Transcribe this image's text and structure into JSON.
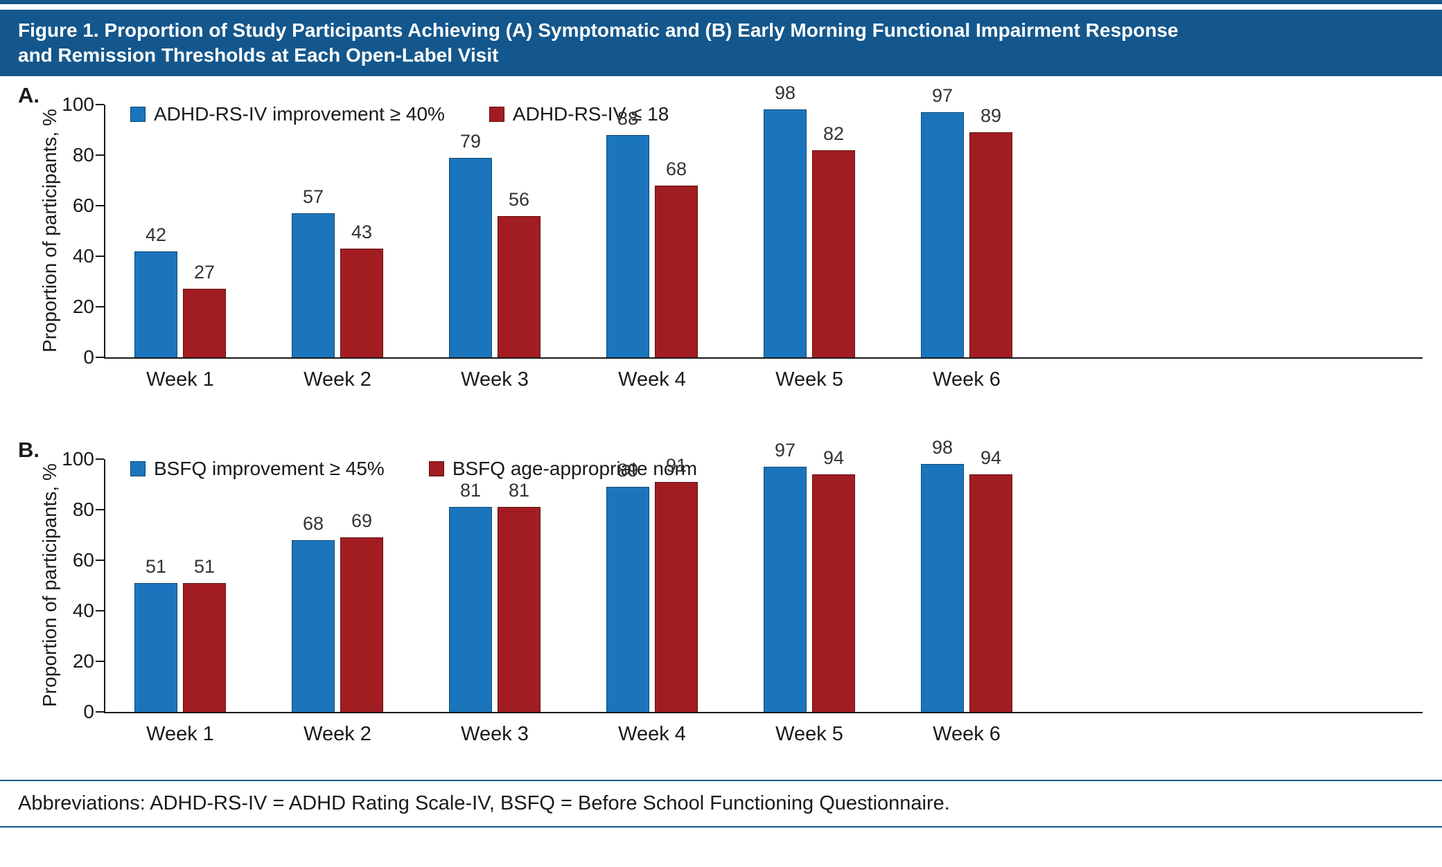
{
  "colors": {
    "banner": "#14578C",
    "rule": "#14578C",
    "blue": "#1B75BC",
    "blue_border": "#0E4A75",
    "red": "#A21D21",
    "red_border": "#5E1012",
    "axis": "#1A1A1A",
    "value_label": "#333333"
  },
  "banner": {
    "title_lines": [
      "Figure 1. Proportion of Study Participants Achieving (A) Symptomatic and (B) Early Morning Functional Impairment Response",
      "and Remission Thresholds at Each Open-Label Visit"
    ]
  },
  "footer": {
    "abbreviations": "Abbreviations: ADHD-RS-IV = ADHD Rating Scale-IV, BSFQ = Before School Functioning Questionnaire."
  },
  "chart_data": [
    {
      "id": "A",
      "panel_label": "A.",
      "type": "bar",
      "ylabel": "Proportion of participants, %",
      "ylim": [
        0,
        100
      ],
      "yticks": [
        0,
        20,
        40,
        60,
        80,
        100
      ],
      "grid": false,
      "legend_position": "top-left",
      "categories": [
        "Week 1",
        "Week 2",
        "Week 3",
        "Week 4",
        "Week 5",
        "Week 6"
      ],
      "series": [
        {
          "name": "ADHD-RS-IV improvement ≥ 40%",
          "color_key": "blue",
          "values": [
            42,
            57,
            79,
            88,
            98,
            97
          ]
        },
        {
          "name": "ADHD-RS-IV ≤ 18",
          "color_key": "red",
          "values": [
            27,
            43,
            56,
            68,
            82,
            89
          ]
        }
      ]
    },
    {
      "id": "B",
      "panel_label": "B.",
      "type": "bar",
      "ylabel": "Proportion of participants, %",
      "ylim": [
        0,
        100
      ],
      "yticks": [
        0,
        20,
        40,
        60,
        80,
        100
      ],
      "grid": false,
      "legend_position": "top-left",
      "categories": [
        "Week 1",
        "Week 2",
        "Week 3",
        "Week 4",
        "Week 5",
        "Week 6"
      ],
      "series": [
        {
          "name": "BSFQ improvement ≥ 45%",
          "color_key": "blue",
          "values": [
            51,
            68,
            81,
            89,
            97,
            98
          ]
        },
        {
          "name": "BSFQ age-appropriate norm",
          "color_key": "red",
          "values": [
            51,
            69,
            81,
            91,
            94,
            94
          ]
        }
      ]
    }
  ]
}
